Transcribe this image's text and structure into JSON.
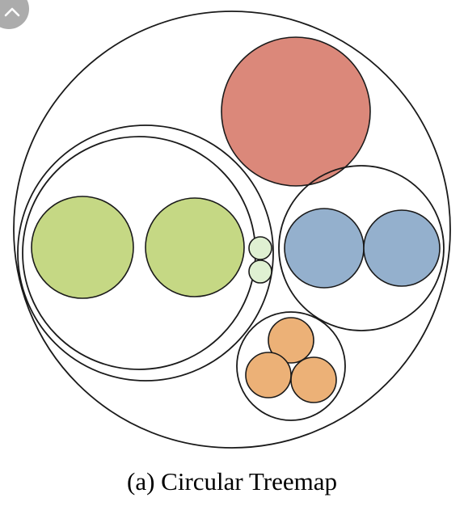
{
  "caption": "(a) Circular Treemap",
  "colors": {
    "outline": "#1a1a1a",
    "background": "#ffffff",
    "red": "#db887a",
    "green": "#c5d884",
    "light_green": "#dff0d2",
    "blue": "#94b0cd",
    "orange": "#ecb177"
  },
  "overlay": {
    "button_icon": "chevron-up-icon",
    "button_color": "#9e9e9e"
  },
  "hierarchy": {
    "name": "root",
    "children": [
      {
        "name": "group-green",
        "children": [
          {
            "name": "subgroup-green",
            "children": [
              {
                "name": "leaf-green-1",
                "color": "green"
              },
              {
                "name": "leaf-green-2",
                "color": "green"
              },
              {
                "name": "leaf-light-green-1",
                "color": "light_green"
              },
              {
                "name": "leaf-light-green-2",
                "color": "light_green"
              }
            ]
          }
        ]
      },
      {
        "name": "leaf-red",
        "color": "red"
      },
      {
        "name": "group-blue",
        "children": [
          {
            "name": "leaf-blue-1",
            "color": "blue"
          },
          {
            "name": "leaf-blue-2",
            "color": "blue"
          }
        ]
      },
      {
        "name": "group-orange",
        "children": [
          {
            "name": "leaf-orange-1",
            "color": "orange"
          },
          {
            "name": "leaf-orange-2",
            "color": "orange"
          },
          {
            "name": "leaf-orange-3",
            "color": "orange"
          }
        ]
      }
    ]
  }
}
